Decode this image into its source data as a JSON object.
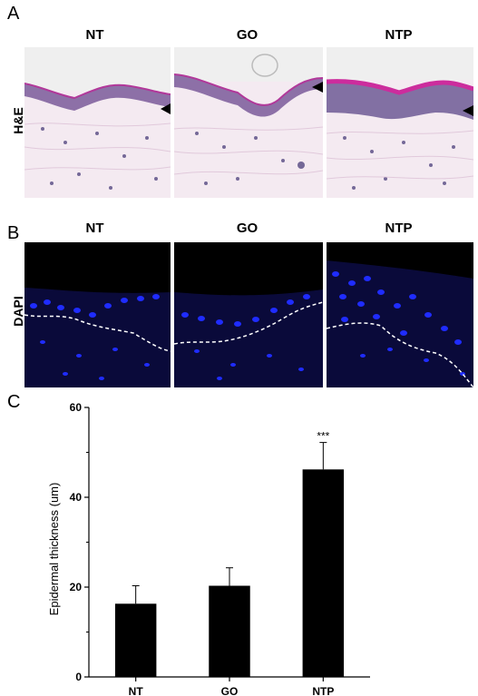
{
  "panel_a": {
    "letter": "A",
    "row_label": "H&E",
    "columns": [
      "NT",
      "GO",
      "NTP"
    ]
  },
  "panel_b": {
    "letter": "B",
    "row_label": "DAPI",
    "columns": [
      "NT",
      "GO",
      "NTP"
    ]
  },
  "panel_c": {
    "letter": "C"
  },
  "chart_data": {
    "type": "bar",
    "categories": [
      "NT",
      "GO",
      "NTP"
    ],
    "values": [
      16.3,
      20.3,
      46.2
    ],
    "errors": [
      4.0,
      4.0,
      6.0
    ],
    "annotations": [
      {
        "category": "NTP",
        "text": "***"
      }
    ],
    "ylabel": "Epidermal thickness (um)",
    "xlabel": "",
    "ylim": [
      0,
      60
    ],
    "yticks": [
      0,
      20,
      40,
      60
    ],
    "bar_color": "#000000"
  },
  "colors": {
    "he_background": "#f1e6ef",
    "he_stain_pink": "#c23aa0",
    "he_nuclei": "#3b3470",
    "dapi_background": "#000000",
    "dapi_nuclei": "#1f2cff"
  }
}
